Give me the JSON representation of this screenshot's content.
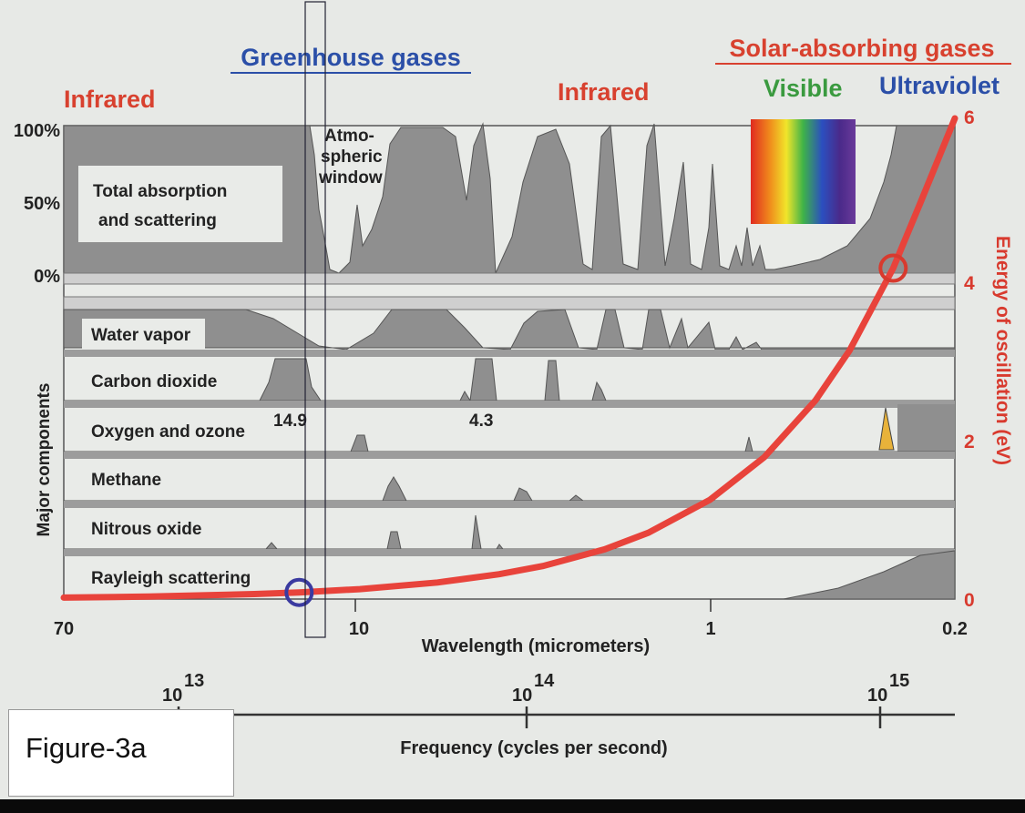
{
  "chart_data": {
    "type": "area",
    "header": {
      "greenhouse": "Greenhouse gases",
      "solar": "Solar-absorbing gases",
      "infrared_left": "Infrared",
      "infrared_right": "Infrared",
      "visible": "Visible",
      "ultraviolet": "Ultraviolet"
    },
    "total_panel": {
      "label_line1": "Total absorption",
      "label_line2": "and scattering",
      "y_ticks": [
        "100%",
        "50%",
        "0%"
      ],
      "window_label": [
        "Atmo-",
        "spheric",
        "window"
      ]
    },
    "y_left_label": "Major components",
    "components": [
      {
        "name": "Water vapor"
      },
      {
        "name": "Carbon dioxide",
        "annotations": [
          "14.9",
          "4.3"
        ]
      },
      {
        "name": "Oxygen and ozone"
      },
      {
        "name": "Methane"
      },
      {
        "name": "Nitrous oxide"
      },
      {
        "name": "Rayleigh scattering"
      }
    ],
    "x_axis": {
      "label": "Wavelength (micrometers)",
      "scale": "log",
      "range": [
        70,
        0.2
      ],
      "ticks": [
        "70",
        "10",
        "1",
        "0.2"
      ]
    },
    "freq_axis": {
      "label": "Frequency (cycles per second)",
      "ticks": [
        {
          "base": "10",
          "exp": "13"
        },
        {
          "base": "10",
          "exp": "14"
        },
        {
          "base": "10",
          "exp": "15"
        }
      ]
    },
    "y_right": {
      "label": "Energy of oscillation (eV)",
      "range": [
        0,
        6
      ],
      "ticks": [
        "6",
        "4",
        "2",
        "0"
      ]
    },
    "energy_curve": {
      "color": "#e8433b",
      "wavelength_um": [
        70,
        40,
        20,
        14.9,
        10,
        6,
        4,
        3,
        2,
        1.5,
        1,
        0.7,
        0.5,
        0.4,
        0.3,
        0.25,
        0.2
      ],
      "energy_ev": [
        0.018,
        0.031,
        0.062,
        0.083,
        0.124,
        0.207,
        0.31,
        0.413,
        0.62,
        0.827,
        1.24,
        1.77,
        2.48,
        3.1,
        4.13,
        4.96,
        6.2
      ]
    },
    "markers": [
      {
        "name": "blue circle",
        "wavelength_um": 14.9,
        "energy_ev": 0.083,
        "color": "#3a3aa0"
      },
      {
        "name": "red circle",
        "wavelength_um": 0.3,
        "energy_ev": 4.13,
        "color": "#d83a2e"
      }
    ],
    "figure_label": "Figure-3a",
    "colors": {
      "greenhouse": "#2b4fa8",
      "solar": "#d8412f",
      "infrared": "#d8412f",
      "visible": "#3a9a3f",
      "ultraviolet": "#2b4fa8",
      "fill": "#8d8d8d"
    }
  }
}
